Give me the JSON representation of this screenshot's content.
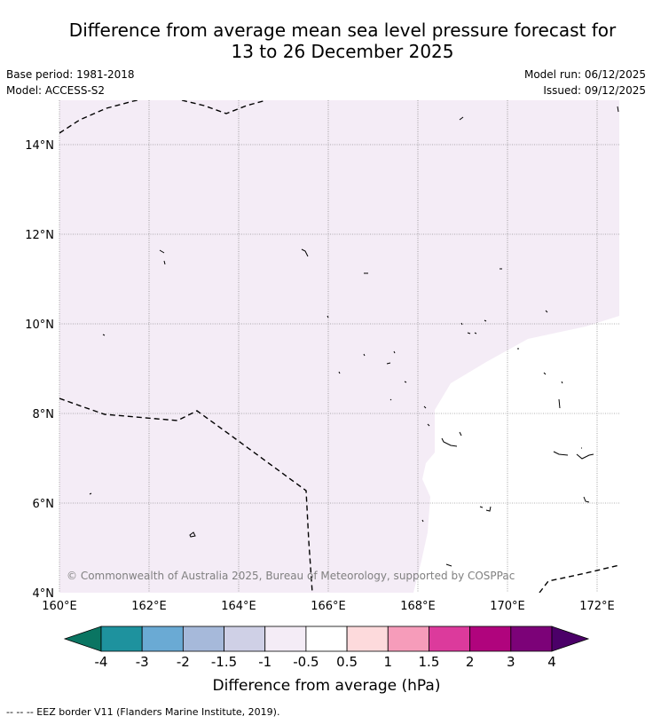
{
  "title_line1": "Difference from average mean sea level pressure forecast for",
  "title_line2": "13 to 26 December 2025",
  "base_period": "Base period: 1981-2018",
  "model": "Model: ACCESS-S2",
  "model_run": "Model run: 06/12/2025",
  "issued": "Issued: 09/12/2025",
  "map": {
    "lat_labels": [
      "14°N",
      "12°N",
      "10°N",
      "8°N",
      "6°N",
      "4°N"
    ],
    "lon_labels": [
      "160°E",
      "162°E",
      "164°E",
      "166°E",
      "168°E",
      "170°E",
      "172°E"
    ],
    "copyright": "© Commonwealth of Australia 2025, Bureau of Meteorology, supported by COSPPac",
    "shaded_category": "-1 to -0.5",
    "shaded_color": "#f4ecf6",
    "unshaded_category": "-0.5 to 0.5",
    "unshaded_color": "#ffffff"
  },
  "colorbar": {
    "title": "Difference from average (hPa)",
    "labels": [
      "-4",
      "-3",
      "-2",
      "-1.5",
      "-1",
      "-0.5",
      "0.5",
      "1",
      "1.5",
      "2",
      "3",
      "4"
    ],
    "colors": [
      "#0a7562",
      "#1e929e",
      "#6aaad4",
      "#a6b9da",
      "#cfd0e6",
      "#f4ecf6",
      "#ffffff",
      "#fddadc",
      "#f69cba",
      "#dc3a9c",
      "#b0047d",
      "#7c0278",
      "#4b0068"
    ]
  },
  "footnote": "-- -- -- EEZ border V11 (Flanders Marine Institute, 2019)."
}
